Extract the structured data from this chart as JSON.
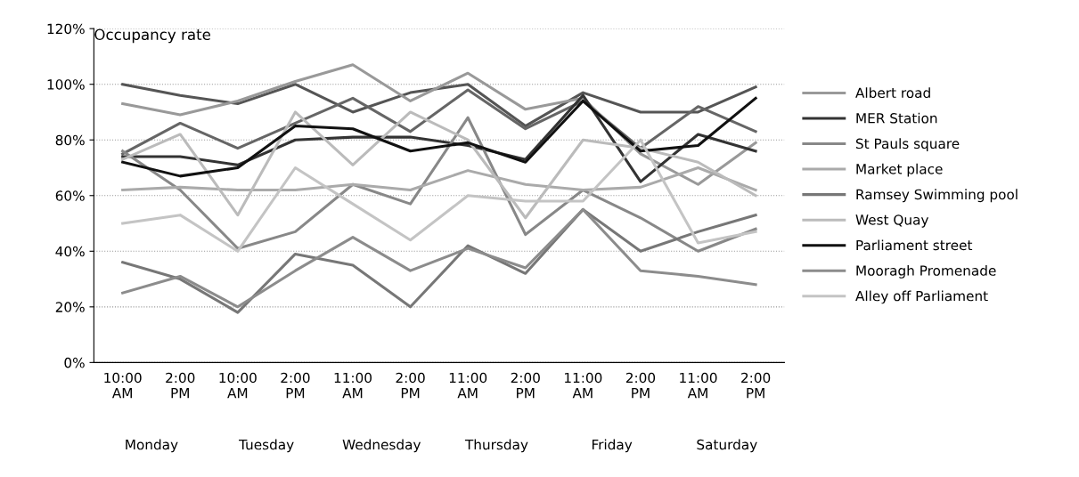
{
  "chart_data": {
    "type": "line",
    "ylabel": "Occupancy rate",
    "categories": [
      "10:00 AM",
      "2:00 PM",
      "10:00 AM",
      "2:00 PM",
      "11:00 AM",
      "2:00 PM",
      "11:00 AM",
      "2:00 PM",
      "11:00 AM",
      "2:00 PM",
      "11:00 AM",
      "2:00 PM"
    ],
    "annotations": [
      "Monday",
      "Tuesday",
      "Wednesday",
      "Thursday",
      "Friday",
      "Saturday"
    ],
    "ylim": [
      0,
      120
    ],
    "yticks": [
      {
        "value": 0,
        "label": "0%"
      },
      {
        "value": 20,
        "label": "20%"
      },
      {
        "value": 40,
        "label": "40%"
      },
      {
        "value": 60,
        "label": "60%"
      },
      {
        "value": 80,
        "label": "80%"
      },
      {
        "value": 100,
        "label": "100%"
      },
      {
        "value": 120,
        "label": "120%"
      }
    ],
    "grid": "y",
    "legend": "right",
    "marker": "none",
    "line_style": "solid",
    "series": [
      {
        "color": "#555555",
        "values": [
          100,
          96,
          93,
          100,
          90,
          97,
          100,
          85,
          97,
          90,
          90,
          99
        ]
      },
      {
        "color": "#666666",
        "values": [
          75,
          86,
          77,
          86,
          95,
          83,
          98,
          84,
          94,
          77,
          92,
          83
        ]
      },
      {
        "name": "Albert road",
        "color": "#999999",
        "values": [
          93,
          89,
          94,
          101,
          107,
          94,
          104,
          91,
          95,
          75,
          64,
          79
        ]
      },
      {
        "name": "MER Station",
        "color": "#333333",
        "values": [
          74,
          74,
          71,
          80,
          81,
          81,
          78,
          73,
          96,
          65,
          82,
          76
        ]
      },
      {
        "name": "St Pauls square",
        "color": "#888888",
        "values": [
          76,
          62,
          41,
          47,
          64,
          57,
          88,
          46,
          62,
          52,
          40,
          48
        ]
      },
      {
        "name": "Market place",
        "color": "#aaaaaa",
        "values": [
          62,
          63,
          62,
          62,
          64,
          62,
          69,
          64,
          62,
          63,
          70,
          62
        ]
      },
      {
        "name": "Ramsey Swimming pool",
        "color": "#777777",
        "values": [
          36,
          30,
          18,
          39,
          35,
          20,
          42,
          32,
          55,
          40,
          47,
          53
        ]
      },
      {
        "name": "West Quay",
        "color": "#bbbbbb",
        "values": [
          73,
          82,
          53,
          90,
          71,
          90,
          80,
          52,
          80,
          77,
          72,
          60
        ]
      },
      {
        "name": "Parliament street",
        "color": "#111111",
        "values": [
          72,
          67,
          70,
          85,
          84,
          76,
          79,
          72,
          94,
          76,
          78,
          95
        ]
      },
      {
        "name": "Mooragh Promenade",
        "color": "#8c8c8c",
        "values": [
          25,
          31,
          20,
          33,
          45,
          33,
          41,
          34,
          55,
          33,
          31,
          28
        ]
      },
      {
        "name": "Alley off Parliament",
        "color": "#c4c4c4",
        "values": [
          50,
          53,
          40,
          70,
          57,
          44,
          60,
          58,
          58,
          80,
          43,
          47
        ]
      }
    ]
  }
}
